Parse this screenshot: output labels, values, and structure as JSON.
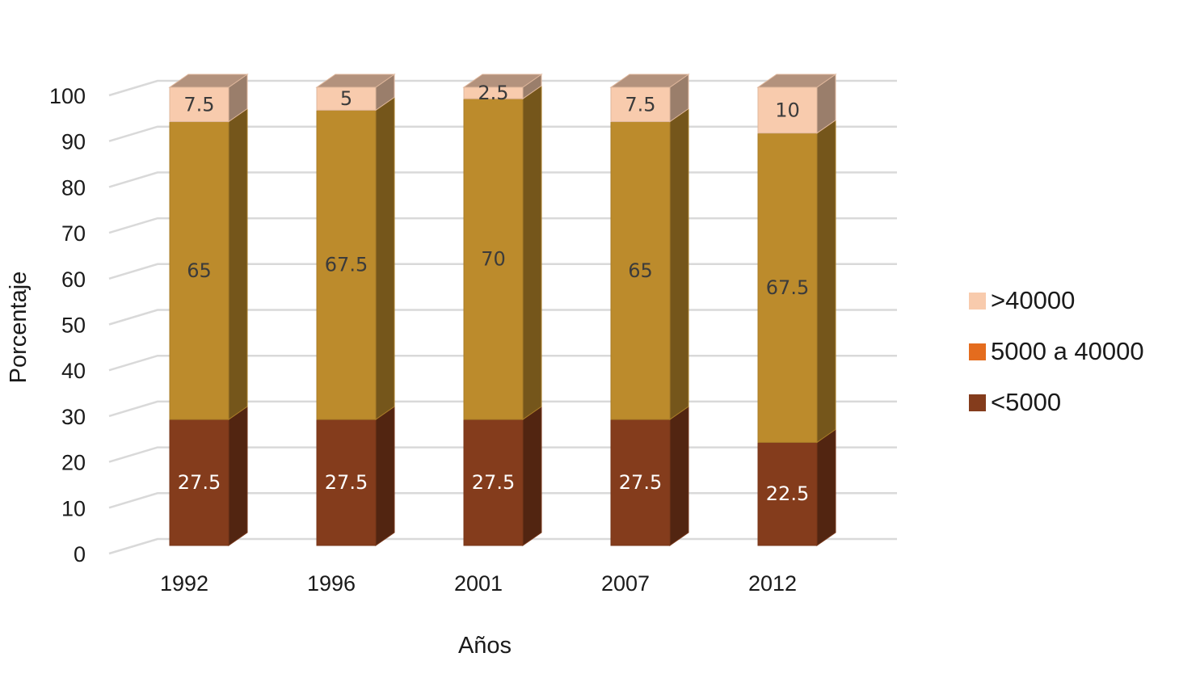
{
  "chart_data": {
    "type": "bar",
    "stacked": true,
    "style": "3d-column",
    "title": "",
    "xlabel": "Años",
    "ylabel": "Porcentaje",
    "ylim": [
      0,
      100
    ],
    "yticks": [
      0,
      10,
      20,
      30,
      40,
      50,
      60,
      70,
      80,
      90,
      100
    ],
    "grid": true,
    "legend_position": "right",
    "categories": [
      "1992",
      "1996",
      "2001",
      "2007",
      "2012"
    ],
    "series": [
      {
        "name": "<5000",
        "values": [
          27.5,
          27.5,
          27.5,
          27.5,
          22.5
        ],
        "labels": [
          "27.5",
          "27.5",
          "27.5",
          "27.5",
          "22.5"
        ],
        "color": "#843C1C",
        "label_color": "#ffffff"
      },
      {
        "name": "5000 a 40000",
        "values": [
          65,
          67.5,
          70,
          65,
          67.5
        ],
        "labels": [
          "65",
          "67.5",
          "70",
          "65",
          "67.5"
        ],
        "color": "#BC8B2C",
        "legend_color": "#E46C1E",
        "label_color": "#3b3b3b"
      },
      {
        "name": ">40000",
        "values": [
          7.5,
          5,
          2.5,
          7.5,
          10
        ],
        "labels": [
          "7.5",
          "5",
          "2.5",
          "7.5",
          "10"
        ],
        "color": "#F8CBAD",
        "label_color": "#3b3b3b"
      }
    ],
    "legend_order": [
      ">40000",
      "5000 a 40000",
      "<5000"
    ]
  }
}
